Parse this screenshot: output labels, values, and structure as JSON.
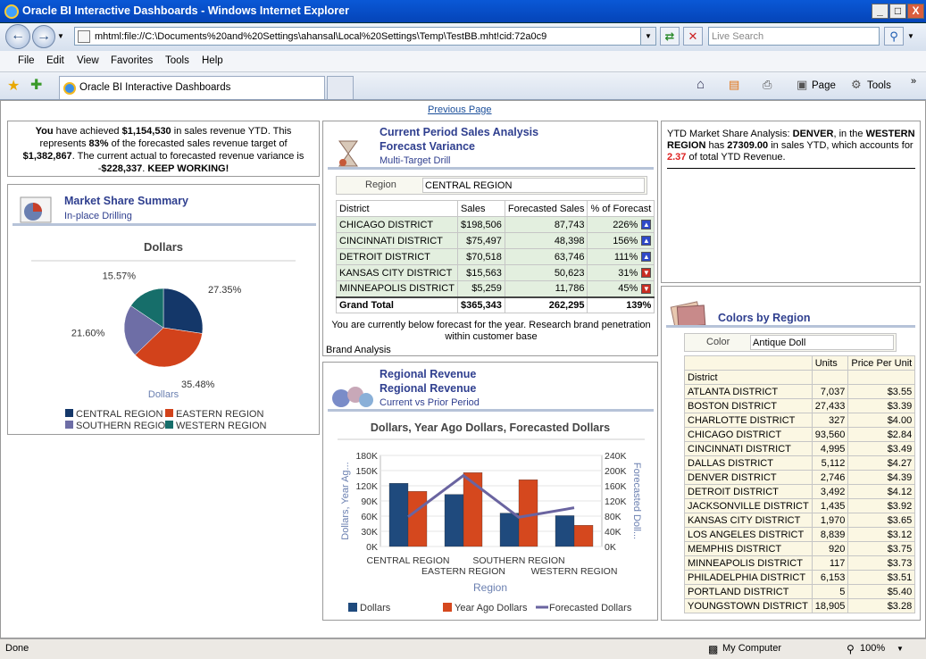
{
  "window": {
    "title": "Oracle BI Interactive Dashboards - Windows Internet Explorer",
    "minimize": "_",
    "maximize": "□",
    "close": "X"
  },
  "nav": {
    "address": "mhtml:file://C:\\Documents%20and%20Settings\\ahansal\\Local%20Settings\\Temp\\TestBB.mht!cid:72a0c9",
    "search_placeholder": "Live Search",
    "back_icon": "back-arrow-icon",
    "forward_icon": "forward-arrow-icon"
  },
  "menu": [
    "File",
    "Edit",
    "View",
    "Favorites",
    "Tools",
    "Help"
  ],
  "tabs": {
    "active": "Oracle BI Interactive Dashboards"
  },
  "toolbar": {
    "page": "Page",
    "tools": "Tools"
  },
  "page": {
    "previous_page": "Previous Page"
  },
  "ytd": {
    "you": "You",
    "t1": "have achieved",
    "amount": "$1,154,530",
    "t2": "in sales revenue YTD. This represents",
    "pct": "83%",
    "t3": "of the forecasted sales revenue target of",
    "target": "$1,382,867",
    "t4": ". The current actual to forecasted revenue variance is -",
    "variance": "$228,337",
    "t5": ".",
    "keep": "KEEP WORKING!"
  },
  "market_share": {
    "title": "Market Share Summary",
    "subtitle": "In-place Drilling",
    "chart_title": "Dollars",
    "x_label": "Dollars"
  },
  "current_period": {
    "title": "Current Period Sales Analysis",
    "title2": "Forecast Variance",
    "subtitle": "Multi-Target Drill",
    "region_label": "Region",
    "region_value": "CENTRAL REGION",
    "columns": [
      "District",
      "Sales",
      "Forecasted Sales",
      "% of Forecast"
    ],
    "rows": [
      {
        "district": "CHICAGO DISTRICT",
        "sales": "$198,506",
        "forecast": "87,743",
        "pct": "226%",
        "dir": "up"
      },
      {
        "district": "CINCINNATI DISTRICT",
        "sales": "$75,497",
        "forecast": "48,398",
        "pct": "156%",
        "dir": "up"
      },
      {
        "district": "DETROIT DISTRICT",
        "sales": "$70,518",
        "forecast": "63,746",
        "pct": "111%",
        "dir": "up"
      },
      {
        "district": "KANSAS CITY DISTRICT",
        "sales": "$15,563",
        "forecast": "50,623",
        "pct": "31%",
        "dir": "down"
      },
      {
        "district": "MINNEAPOLIS DISTRICT",
        "sales": "$5,259",
        "forecast": "11,786",
        "pct": "45%",
        "dir": "down"
      }
    ],
    "total": {
      "label": "Grand Total",
      "sales": "$365,343",
      "forecast": "262,295",
      "pct": "139%"
    },
    "note": "You are currently below forecast for the year. Research brand penetration within customer base",
    "link": "Brand Analysis"
  },
  "regional_revenue": {
    "title": "Regional Revenue",
    "title2": "Regional Revenue",
    "subtitle": "Current vs Prior Period"
  },
  "ytd_share": {
    "t1": "YTD Market Share Analysis:",
    "city": "DENVER",
    "t2": ", in the",
    "region": "WESTERN REGION",
    "t3": "has",
    "sales": "27309.00",
    "t4": "in sales YTD, which accounts for",
    "pct": "2.37",
    "t5": "of total YTD Revenue."
  },
  "colors_region": {
    "title": "Colors by Region",
    "color_label": "Color",
    "color_value": "Antique Doll",
    "columns": [
      "District",
      "Units",
      "Price Per Unit"
    ],
    "rows": [
      [
        "ATLANTA DISTRICT",
        "7,037",
        "$3.55"
      ],
      [
        "BOSTON DISTRICT",
        "27,433",
        "$3.39"
      ],
      [
        "CHARLOTTE DISTRICT",
        "327",
        "$4.00"
      ],
      [
        "CHICAGO DISTRICT",
        "93,560",
        "$2.84"
      ],
      [
        "CINCINNATI DISTRICT",
        "4,995",
        "$3.49"
      ],
      [
        "DALLAS DISTRICT",
        "5,112",
        "$4.27"
      ],
      [
        "DENVER DISTRICT",
        "2,746",
        "$4.39"
      ],
      [
        "DETROIT DISTRICT",
        "3,492",
        "$4.12"
      ],
      [
        "JACKSONVILLE DISTRICT",
        "1,435",
        "$3.92"
      ],
      [
        "KANSAS CITY DISTRICT",
        "1,970",
        "$3.65"
      ],
      [
        "LOS ANGELES DISTRICT",
        "8,839",
        "$3.12"
      ],
      [
        "MEMPHIS DISTRICT",
        "920",
        "$3.75"
      ],
      [
        "MINNEAPOLIS DISTRICT",
        "117",
        "$3.73"
      ],
      [
        "PHILADELPHIA DISTRICT",
        "6,153",
        "$3.51"
      ],
      [
        "PORTLAND DISTRICT",
        "5",
        "$5.40"
      ],
      [
        "YOUNGSTOWN DISTRICT",
        "18,905",
        "$3.28"
      ]
    ]
  },
  "status": {
    "left": "Done",
    "zone": "My Computer",
    "zoom": "100%"
  },
  "chart_data": [
    {
      "type": "pie",
      "title": "Dollars",
      "xlabel": "Dollars",
      "categories": [
        "CENTRAL REGION",
        "EASTERN REGION",
        "SOUTHERN REGION",
        "WESTERN REGION"
      ],
      "values": [
        27.35,
        35.48,
        21.6,
        15.57
      ],
      "labels": [
        "27.35%",
        "35.48%",
        "21.60%",
        "15.57%"
      ],
      "colors": [
        "#143769",
        "#d2421b",
        "#6e6ea6",
        "#166e6a"
      ],
      "legend": "bottom"
    },
    {
      "type": "bar",
      "title": "Dollars, Year Ago Dollars, Forecasted Dollars",
      "xlabel": "Region",
      "ylabel": "Dollars, Year Ag...",
      "y2label": "Forecasted Doll...",
      "categories": [
        "CENTRAL REGION",
        "EASTERN REGION",
        "SOUTHERN REGION",
        "WESTERN REGION"
      ],
      "ylim": [
        0,
        180000
      ],
      "y2lim": [
        0,
        240000
      ],
      "yticks": [
        "0K",
        "30K",
        "60K",
        "90K",
        "120K",
        "150K",
        "180K"
      ],
      "y2ticks": [
        "0K",
        "40K",
        "80K",
        "120K",
        "160K",
        "200K",
        "240K"
      ],
      "series": [
        {
          "name": "Dollars",
          "kind": "bar",
          "axis": "left",
          "color": "#1f4a7d",
          "values": [
            125000,
            103000,
            66000,
            61000
          ]
        },
        {
          "name": "Year Ago Dollars",
          "kind": "bar",
          "axis": "left",
          "color": "#d5481e",
          "values": [
            109000,
            146000,
            132000,
            42000
          ]
        },
        {
          "name": "Forecasted Dollars",
          "kind": "line",
          "axis": "right",
          "color": "#6a64a0",
          "values": [
            78000,
            187000,
            77000,
            102000
          ]
        }
      ],
      "legend": "bottom"
    }
  ]
}
